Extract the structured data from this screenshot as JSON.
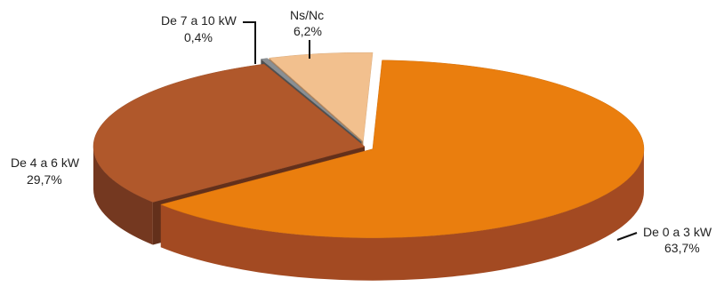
{
  "chart_data": {
    "type": "pie",
    "title": "",
    "slices": [
      {
        "name": "De 0 a 3 kW",
        "value": 63.7,
        "value_label": "63,7%",
        "color": "#ea7e0e",
        "side_color": "#a34a22"
      },
      {
        "name": "De 4 a 6 kW",
        "value": 29.7,
        "value_label": "29,7%",
        "color": "#b0582b",
        "side_color": "#743820"
      },
      {
        "name": "De 7 a 10 kW",
        "value": 0.4,
        "value_label": "0,4%",
        "color": "#8a8f93",
        "side_color": "#5a5e61"
      },
      {
        "name": "Ns/Nc",
        "value": 6.2,
        "value_label": "6,2%",
        "color": "#f2c08e",
        "side_color": "#d39d6b"
      }
    ],
    "style": "3d-exploded",
    "legend": "none",
    "labels": "outside-with-leaders"
  }
}
